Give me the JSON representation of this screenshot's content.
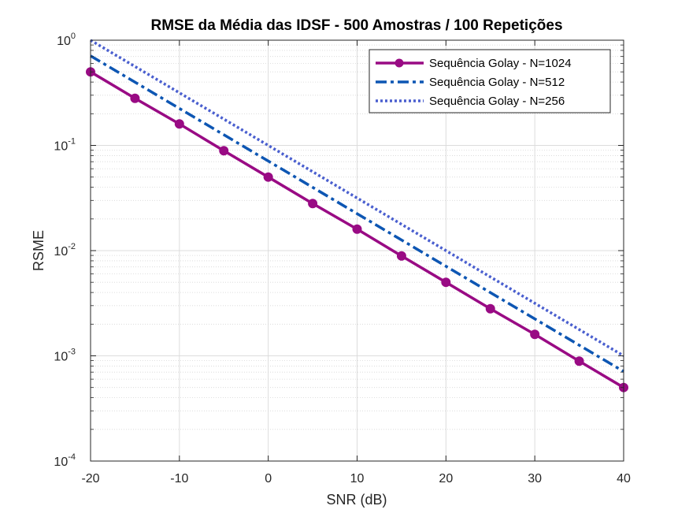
{
  "chart_data": {
    "type": "line",
    "title": "RMSE da Média das IDSF - 500 Amostras / 100 Repetições",
    "xlabel": "SNR (dB)",
    "ylabel": "RSME",
    "xlim": [
      -20,
      40
    ],
    "ylim": [
      0.0001,
      1
    ],
    "yscale": "log",
    "grid": true,
    "legend_position": "top-right",
    "x_ticks": [
      "-20",
      "-10",
      "0",
      "10",
      "20",
      "30",
      "40"
    ],
    "x_tick_values": [
      -20,
      -10,
      0,
      10,
      20,
      30,
      40
    ],
    "y_tick_exponents": [
      "0",
      "-1",
      "-2",
      "-3",
      "-4"
    ],
    "y_tick_values": [
      1,
      0.1,
      0.01,
      0.001,
      0.0001
    ],
    "series": [
      {
        "name": "Sequência Golay - N=1024",
        "color": "#990b84",
        "style": "solid-markers",
        "x": [
          -20,
          -15,
          -10,
          -5,
          0,
          5,
          10,
          15,
          20,
          25,
          30,
          35,
          40
        ],
        "y": [
          0.5,
          0.28,
          0.16,
          0.089,
          0.05,
          0.028,
          0.016,
          0.0089,
          0.005,
          0.0028,
          0.0016,
          0.00089,
          0.0005
        ]
      },
      {
        "name": "Sequência Golay - N=512",
        "color": "#0d56b3",
        "style": "dash-dot",
        "x": [
          -20,
          40
        ],
        "y": [
          0.71,
          0.00071
        ]
      },
      {
        "name": "Sequência Golay - N=256",
        "color": "#4a5fcf",
        "style": "dotted",
        "x": [
          -20,
          40
        ],
        "y": [
          1.0,
          0.001
        ]
      }
    ]
  }
}
